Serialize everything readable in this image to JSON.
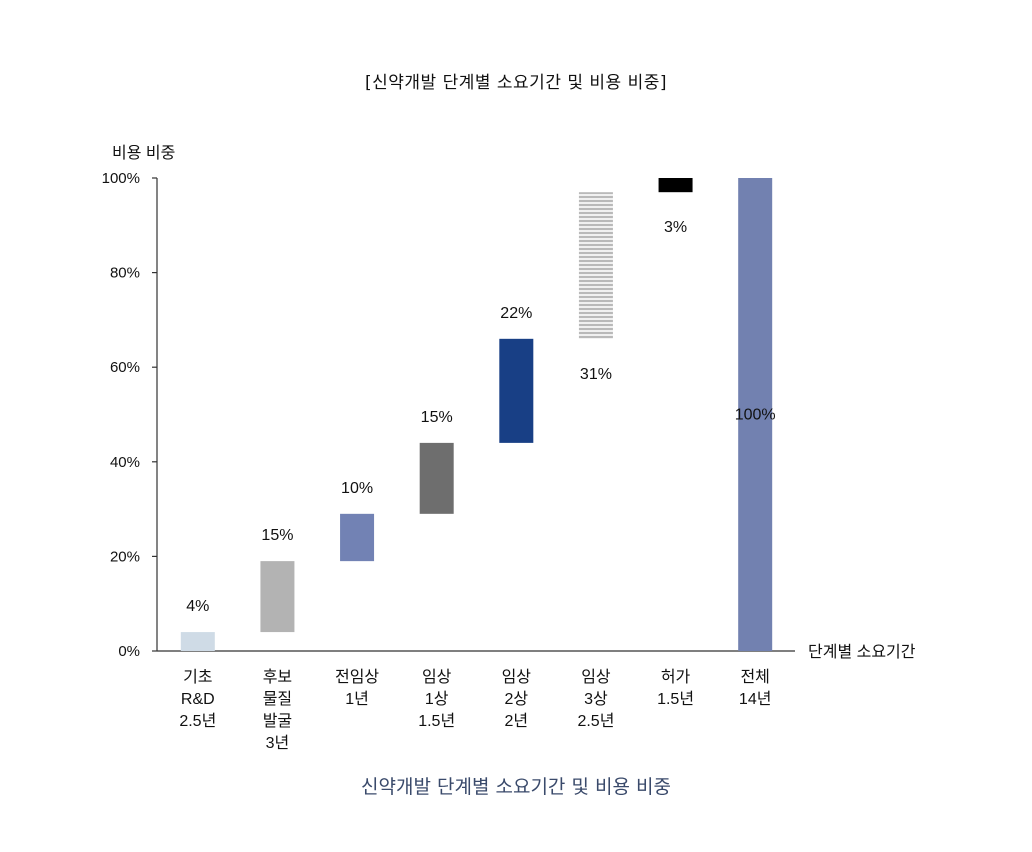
{
  "title": "[신약개발 단계별 소요기간 및 비용 비중]",
  "caption": "신약개발 단계별 소요기간 및 비용 비중",
  "chart_data": {
    "type": "bar",
    "subtype": "waterfall",
    "ylabel": "비용  비중",
    "xlabel": "단계별  소요기간",
    "ylim": [
      0,
      100
    ],
    "yticks": [
      "0%",
      "20%",
      "40%",
      "60%",
      "80%",
      "100%"
    ],
    "grid": false,
    "categories": [
      [
        "기초",
        "R&D",
        "2.5년"
      ],
      [
        "후보",
        "물질",
        "발굴",
        "3년"
      ],
      [
        "전임상",
        "1년"
      ],
      [
        "임상",
        "1상",
        "1.5년"
      ],
      [
        "임상",
        "2상",
        "2년"
      ],
      [
        "임상",
        "3상",
        "2.5년"
      ],
      [
        "허가",
        "1.5년"
      ],
      [
        "전체",
        "14년"
      ]
    ],
    "bars": [
      {
        "start": 0,
        "end": 4,
        "label": "4%",
        "color": "#cfdbe6",
        "label_pos": "above"
      },
      {
        "start": 4,
        "end": 19,
        "label": "15%",
        "color": "#b3b3b3",
        "label_pos": "above"
      },
      {
        "start": 19,
        "end": 29,
        "label": "10%",
        "color": "#7282b4",
        "label_pos": "above"
      },
      {
        "start": 29,
        "end": 44,
        "label": "15%",
        "color": "#6e6e6e",
        "label_pos": "above"
      },
      {
        "start": 44,
        "end": 66,
        "label": "22%",
        "color": "#183f85",
        "label_pos": "above"
      },
      {
        "start": 66,
        "end": 97,
        "label": "31%",
        "color": "striped",
        "label_pos": "below"
      },
      {
        "start": 97,
        "end": 100,
        "label": "3%",
        "color": "#000000",
        "label_pos": "below"
      },
      {
        "start": 0,
        "end": 100,
        "label": "100%",
        "color": "#7281b0",
        "label_pos": "inside"
      }
    ]
  }
}
